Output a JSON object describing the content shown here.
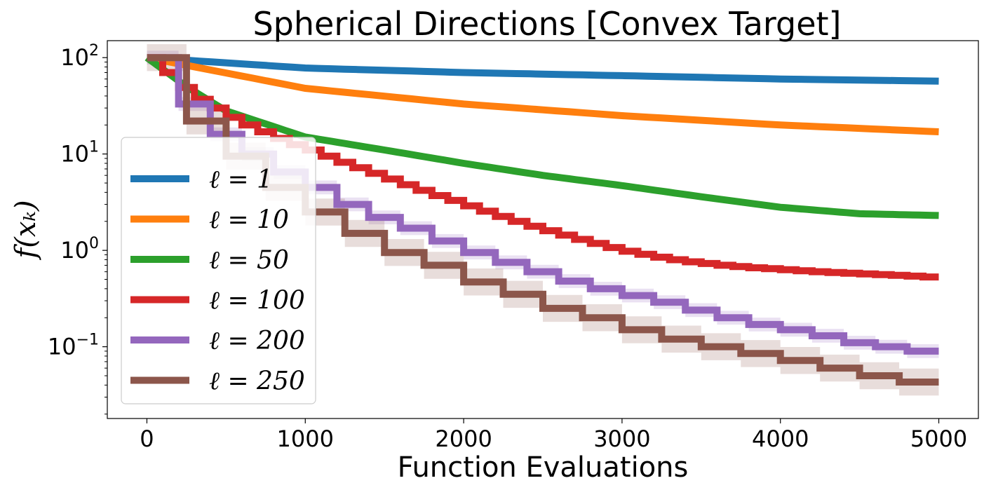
{
  "chart_data": {
    "type": "line",
    "title": "Spherical Directions [Convex Target]",
    "xlabel": "Function Evaluations",
    "ylabel": "f(x_k)",
    "ylabel_display": "f(xₖ)",
    "xlim": [
      -250,
      5250
    ],
    "ylim": [
      0.018,
      150
    ],
    "yscale": "log",
    "grid": false,
    "legend_position": "lower-left",
    "x_ticks": [
      {
        "value": 0,
        "label": "0"
      },
      {
        "value": 1000,
        "label": "1000"
      },
      {
        "value": 2000,
        "label": "2000"
      },
      {
        "value": 3000,
        "label": "3000"
      },
      {
        "value": 4000,
        "label": "4000"
      },
      {
        "value": 5000,
        "label": "5000"
      }
    ],
    "y_ticks": [
      {
        "value": 100,
        "base": "10",
        "exp": "2"
      },
      {
        "value": 10,
        "base": "10",
        "exp": "1"
      },
      {
        "value": 1,
        "base": "10",
        "exp": "0"
      },
      {
        "value": 0.1,
        "base": "10",
        "exp": "−1"
      }
    ],
    "series": [
      {
        "name": "ℓ = 1",
        "l": 1,
        "color": "#1f77b4",
        "band": false,
        "x": [
          0,
          1000,
          2000,
          3000,
          4000,
          5000
        ],
        "values": [
          100,
          78,
          70,
          65,
          60,
          57
        ]
      },
      {
        "name": "ℓ = 10",
        "l": 10,
        "color": "#ff7f0e",
        "band": false,
        "x": [
          0,
          1000,
          2000,
          3000,
          4000,
          5000
        ],
        "values": [
          100,
          48,
          33,
          25,
          20,
          17
        ]
      },
      {
        "name": "ℓ = 50",
        "l": 50,
        "color": "#2ca02c",
        "band": false,
        "x": [
          0,
          250,
          500,
          1000,
          1500,
          2000,
          2500,
          3000,
          3500,
          4000,
          4500,
          5000
        ],
        "values": [
          100,
          50,
          28,
          15,
          11,
          8,
          6,
          4.7,
          3.6,
          2.8,
          2.4,
          2.3
        ]
      },
      {
        "name": "ℓ = 100",
        "l": 100,
        "color": "#d62728",
        "band": false,
        "x": [
          0,
          100,
          200,
          300,
          400,
          500,
          600,
          700,
          800,
          900,
          1000,
          1100,
          1200,
          1300,
          1400,
          1500,
          1600,
          1700,
          1800,
          1900,
          2000,
          2100,
          2200,
          2300,
          2400,
          2500,
          2600,
          2700,
          2800,
          2900,
          3000,
          3100,
          3200,
          3300,
          3400,
          3500,
          3600,
          3700,
          3800,
          3900,
          4000,
          4100,
          4200,
          4300,
          4400,
          4500,
          4600,
          4700,
          4800,
          4900
        ],
        "values": [
          100,
          70,
          49,
          37,
          30,
          24,
          20,
          17,
          14.5,
          12.5,
          11,
          9.5,
          8.2,
          7.2,
          6.3,
          5.5,
          4.8,
          4.2,
          3.7,
          3.3,
          2.9,
          2.55,
          2.25,
          2.0,
          1.78,
          1.6,
          1.44,
          1.3,
          1.18,
          1.07,
          0.98,
          0.91,
          0.85,
          0.8,
          0.76,
          0.73,
          0.7,
          0.68,
          0.66,
          0.645,
          0.63,
          0.615,
          0.6,
          0.59,
          0.58,
          0.57,
          0.56,
          0.55,
          0.54,
          0.53
        ],
        "x_end": 5000
      },
      {
        "name": "ℓ = 200",
        "l": 200,
        "color": "#9467bd",
        "band": true,
        "band_ratio": 1.18,
        "x": [
          0,
          200,
          400,
          600,
          800,
          1000,
          1200,
          1400,
          1600,
          1800,
          2000,
          2200,
          2400,
          2600,
          2800,
          3000,
          3200,
          3400,
          3600,
          3800,
          4000,
          4200,
          4400,
          4600,
          4800
        ],
        "values": [
          100,
          33,
          16,
          10,
          6.5,
          4.5,
          3.0,
          2.2,
          1.7,
          1.25,
          0.95,
          0.75,
          0.6,
          0.48,
          0.4,
          0.34,
          0.29,
          0.24,
          0.2,
          0.17,
          0.15,
          0.13,
          0.11,
          0.1,
          0.09
        ],
        "x_end": 5000
      },
      {
        "name": "ℓ = 250",
        "l": 250,
        "color": "#8c564b",
        "band": true,
        "band_ratio": 1.38,
        "x": [
          0,
          250,
          500,
          750,
          1000,
          1250,
          1500,
          1750,
          2000,
          2250,
          2500,
          2750,
          3000,
          3250,
          3500,
          3750,
          4000,
          4250,
          4500,
          4750
        ],
        "values": [
          100,
          22,
          9.5,
          4.5,
          2.5,
          1.5,
          0.95,
          0.7,
          0.47,
          0.35,
          0.25,
          0.2,
          0.15,
          0.12,
          0.1,
          0.085,
          0.072,
          0.06,
          0.05,
          0.043
        ],
        "x_end": 5000
      }
    ]
  }
}
